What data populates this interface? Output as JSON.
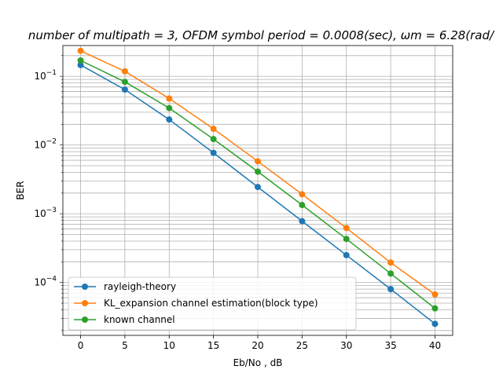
{
  "chart_data": {
    "type": "line",
    "title": "number of multipath = 3, OFDM symbol period = 0.0008(sec), ωm = 6.28(rad/",
    "xlabel": "Eb/No , dB",
    "ylabel": "BER",
    "y_scale": "log",
    "grid": true,
    "legend_position": "lower-left",
    "x": [
      0,
      5,
      10,
      15,
      20,
      25,
      30,
      35,
      40
    ],
    "xlim": [
      -2,
      42
    ],
    "ylim": [
      1.7e-05,
      0.28
    ],
    "x_ticks": [
      "0",
      "5",
      "10",
      "15",
      "20",
      "25",
      "30",
      "35",
      "40"
    ],
    "y_ticks": [
      {
        "value": 0.0001,
        "mantissa": "10",
        "exponent": "−4"
      },
      {
        "value": 0.001,
        "mantissa": "10",
        "exponent": "−3"
      },
      {
        "value": 0.01,
        "mantissa": "10",
        "exponent": "−2"
      },
      {
        "value": 0.1,
        "mantissa": "10",
        "exponent": "−1"
      }
    ],
    "series": [
      {
        "name": "rayleigh-theory",
        "color": "#1f77b4",
        "values": [
          0.146,
          0.064,
          0.0235,
          0.0077,
          0.00245,
          0.00078,
          0.00025,
          8e-05,
          2.5e-05
        ]
      },
      {
        "name": "KL_expansion channel estimation(block type)",
        "color": "#ff7f0e",
        "values": [
          0.235,
          0.118,
          0.0475,
          0.0172,
          0.0058,
          0.00192,
          0.00062,
          0.000195,
          6.7e-05
        ]
      },
      {
        "name": "known channel",
        "color": "#2ca02c",
        "values": [
          0.17,
          0.083,
          0.0345,
          0.0122,
          0.0041,
          0.00134,
          0.00043,
          0.000135,
          4.2e-05
        ]
      }
    ]
  }
}
